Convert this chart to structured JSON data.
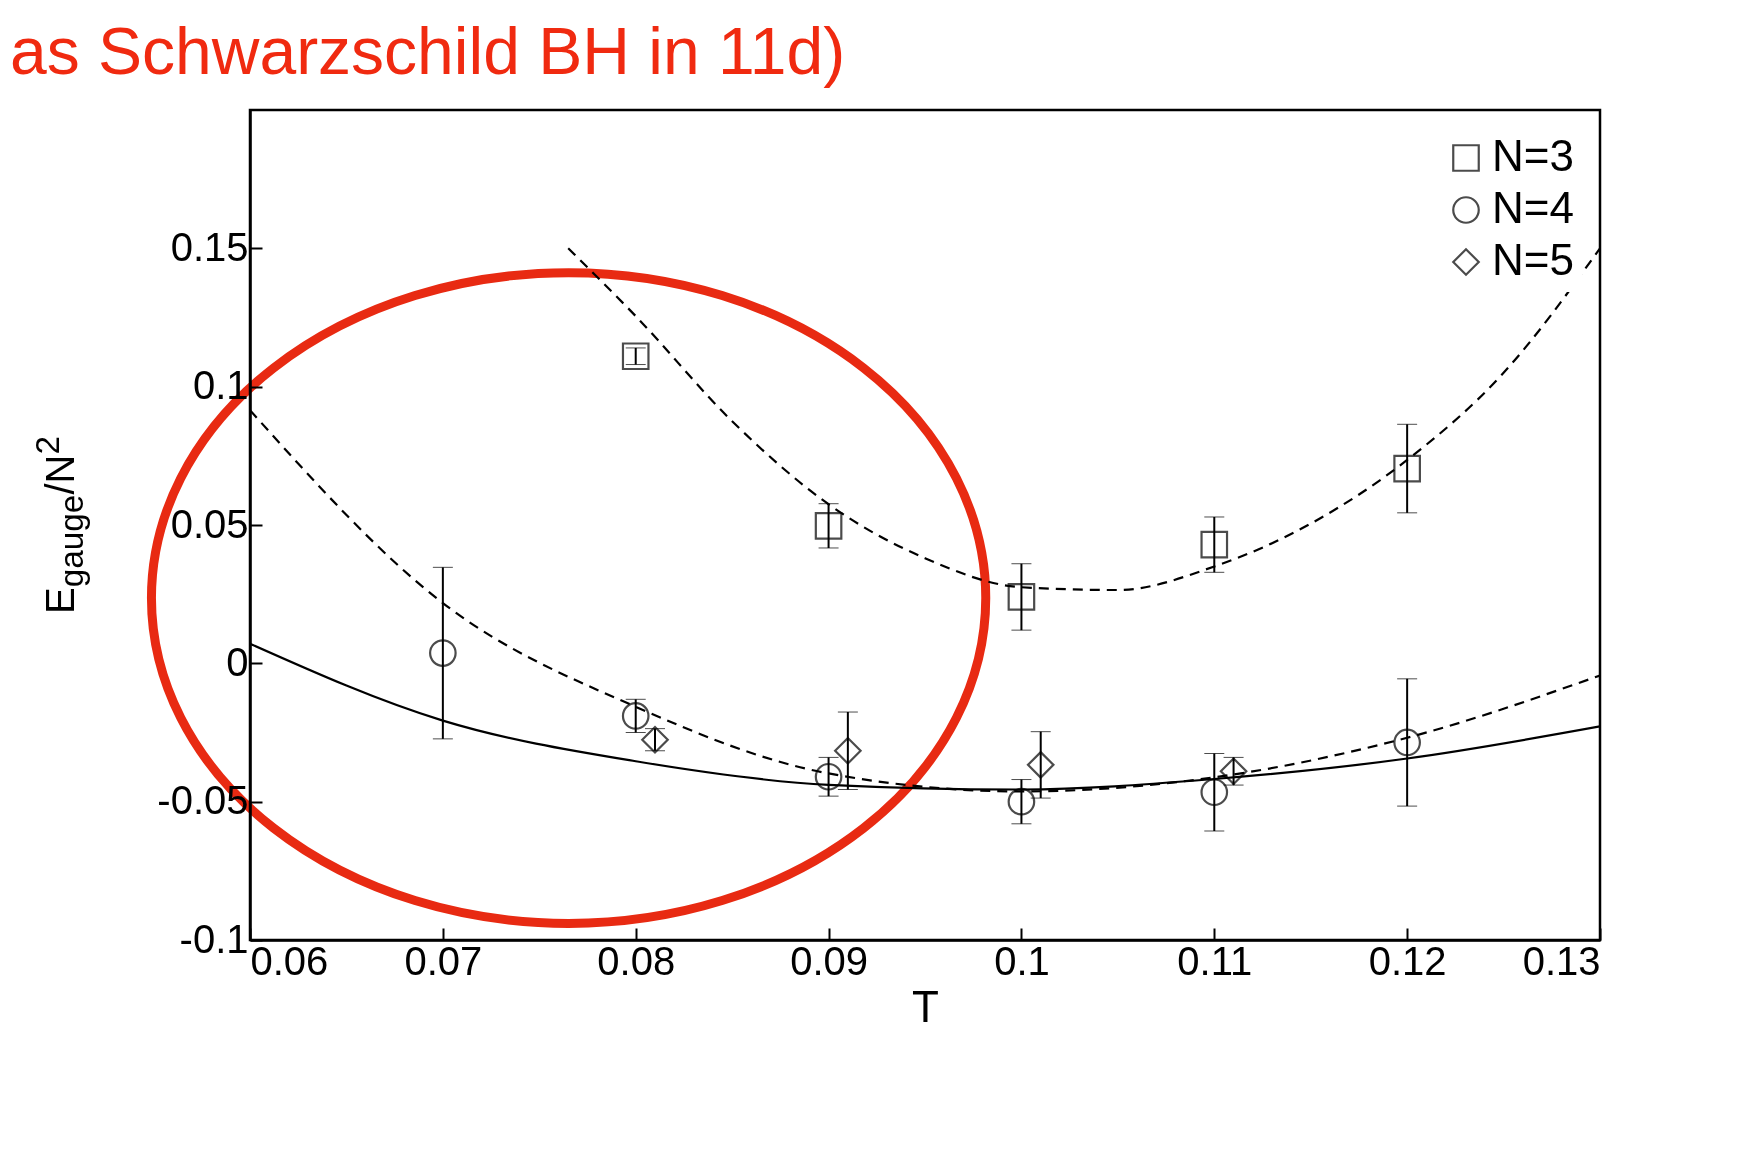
{
  "chart_data": {
    "type": "scatter",
    "title": "as Schwarzschild BH in 11d)",
    "xlabel": "T",
    "ylabel": "E$_{gauge}$/N$^{2}$",
    "xlim": [
      0.06,
      0.13
    ],
    "xticks": [
      0.06,
      0.07,
      0.08,
      0.09,
      0.1,
      0.11,
      0.12,
      0.13
    ],
    "ylim": [
      -0.1,
      0.2
    ],
    "yticks": [
      -0.1,
      -0.05,
      0,
      0.05,
      0.1,
      0.15
    ],
    "grid": false,
    "legend": "top right",
    "series": [
      {
        "name": "N=3",
        "marker": "square",
        "color": "#000000",
        "x": [
          0.08,
          0.09,
          0.1,
          0.11,
          0.12
        ],
        "values": [
          0.111,
          0.0497,
          0.024,
          0.0429,
          0.0704
        ],
        "errors": [
          0.003,
          0.008,
          0.012,
          0.01,
          0.016
        ]
      },
      {
        "name": "N=4",
        "marker": "circle",
        "color": "#000000",
        "x": [
          0.07,
          0.08,
          0.09,
          0.1,
          0.11,
          0.12
        ],
        "values": [
          0.0037,
          -0.019,
          -0.041,
          -0.05,
          -0.0466,
          -0.0286
        ],
        "errors": [
          0.031,
          0.006,
          0.007,
          0.008,
          0.014,
          0.023
        ]
      },
      {
        "name": "N=5",
        "marker": "diamond",
        "color": "#000000",
        "x": [
          0.081,
          0.091,
          0.101,
          0.111
        ],
        "values": [
          -0.0276,
          -0.0316,
          -0.0367,
          -0.039
        ],
        "errors": [
          0.004,
          0.014,
          0.012,
          0.005
        ]
      },
      {
        "type": "line",
        "line_style": "dashed",
        "color": "#000000",
        "x": [
          0.0765,
          0.08,
          0.085,
          0.09,
          0.095,
          0.1,
          0.105,
          0.11,
          0.115,
          0.12,
          0.125,
          0.13
        ],
        "values": [
          0.15,
          0.1255,
          0.0875,
          0.0575,
          0.038,
          0.0275,
          0.0265,
          0.035,
          0.0505,
          0.0735,
          0.105,
          0.15
        ]
      },
      {
        "type": "line",
        "line_style": "dashed",
        "color": "#000000",
        "x": [
          0.06,
          0.07,
          0.08,
          0.09,
          0.1,
          0.11,
          0.12,
          0.13
        ],
        "values": [
          0.0915,
          0.0218,
          -0.0157,
          -0.0398,
          -0.0463,
          -0.0412,
          -0.0269,
          -0.0044
        ]
      },
      {
        "type": "line",
        "line_style": "solid",
        "color": "#000000",
        "x": [
          0.06,
          0.07,
          0.08,
          0.09,
          0.1,
          0.11,
          0.12,
          0.13
        ],
        "values": [
          0.0071,
          -0.0207,
          -0.0354,
          -0.0439,
          -0.0456,
          -0.0418,
          -0.0344,
          -0.0228
        ]
      }
    ]
  }
}
